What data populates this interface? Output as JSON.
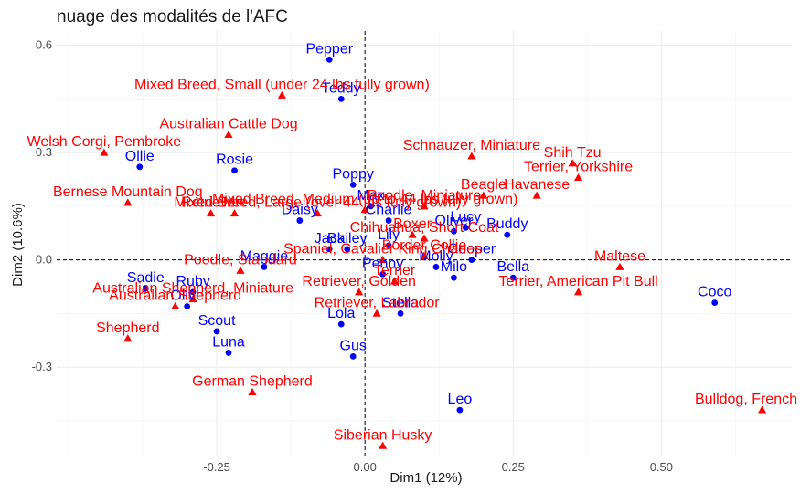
{
  "chart_data": {
    "type": "scatter",
    "title": "nuage des modalités de l'AFC",
    "xlabel": "Dim1 (12%)",
    "ylabel": "Dim2 (10.6%)",
    "xlim": [
      -0.52,
      0.72
    ],
    "ylim": [
      -0.55,
      0.64
    ],
    "xticks": [
      -0.25,
      0.0,
      0.25,
      0.5
    ],
    "xtick_labels": [
      "-0.25",
      "0.00",
      "0.25",
      "0.50"
    ],
    "yticks": [
      -0.3,
      0.0,
      0.3,
      0.6
    ],
    "ytick_labels": [
      "-0.3",
      "0.0",
      "0.3",
      "0.6"
    ],
    "grid": true,
    "reference_lines": {
      "x": 0,
      "y": 0,
      "style": "dashed"
    },
    "colors": {
      "names": "#0000ff",
      "breeds": "#ff0000"
    },
    "series": [
      {
        "marker": "circle",
        "color": "#0000ff",
        "points": [
          {
            "label": "Pepper",
            "x": -0.06,
            "y": 0.56
          },
          {
            "label": "Teddy",
            "x": -0.04,
            "y": 0.45
          },
          {
            "label": "Poppy",
            "x": -0.02,
            "y": 0.21
          },
          {
            "label": "Ollie",
            "x": -0.38,
            "y": 0.26
          },
          {
            "label": "Rosie",
            "x": -0.22,
            "y": 0.25
          },
          {
            "label": "Daisy",
            "x": -0.11,
            "y": 0.11
          },
          {
            "label": "Max",
            "x": 0.01,
            "y": 0.15
          },
          {
            "label": "Charlie",
            "x": 0.04,
            "y": 0.11
          },
          {
            "label": "Lucy",
            "x": 0.17,
            "y": 0.09
          },
          {
            "label": "Oliver",
            "x": 0.15,
            "y": 0.08
          },
          {
            "label": "Buddy",
            "x": 0.24,
            "y": 0.07
          },
          {
            "label": "Lily",
            "x": 0.04,
            "y": 0.04
          },
          {
            "label": "Bailey",
            "x": -0.03,
            "y": 0.03
          },
          {
            "label": "Cooper",
            "x": 0.18,
            "y": 0.0
          },
          {
            "label": "Molly",
            "x": 0.12,
            "y": -0.02
          },
          {
            "label": "Maggie",
            "x": -0.17,
            "y": -0.02
          },
          {
            "label": "Jack",
            "x": -0.06,
            "y": 0.03
          },
          {
            "label": "Sadie",
            "x": -0.37,
            "y": -0.08
          },
          {
            "label": "Ruby",
            "x": -0.29,
            "y": -0.09
          },
          {
            "label": "Olive",
            "x": -0.3,
            "y": -0.13
          },
          {
            "label": "Scout",
            "x": -0.25,
            "y": -0.2
          },
          {
            "label": "Luna",
            "x": -0.23,
            "y": -0.26
          },
          {
            "label": "Gus",
            "x": -0.02,
            "y": -0.27
          },
          {
            "label": "Lola",
            "x": -0.04,
            "y": -0.18
          },
          {
            "label": "Penny",
            "x": 0.03,
            "y": -0.04
          },
          {
            "label": "Stella",
            "x": 0.06,
            "y": -0.15
          },
          {
            "label": "Milo",
            "x": 0.15,
            "y": -0.05
          },
          {
            "label": "Bella",
            "x": 0.25,
            "y": -0.05
          },
          {
            "label": "Coco",
            "x": 0.59,
            "y": -0.12
          },
          {
            "label": "Leo",
            "x": 0.16,
            "y": -0.42
          }
        ]
      },
      {
        "marker": "triangle",
        "color": "#ff0000",
        "points": [
          {
            "label": "Mixed Breed, Small (under 24 lbs fully grown)",
            "x": -0.14,
            "y": 0.46
          },
          {
            "label": "Australian Cattle Dog",
            "x": -0.23,
            "y": 0.35
          },
          {
            "label": "Welsh Corgi, Pembroke",
            "x": -0.44,
            "y": 0.3
          },
          {
            "label": "Mixed Breed, Medium (up to 44 lbs fully grown)",
            "x": 0.0,
            "y": 0.14
          },
          {
            "label": "Bernese Mountain Dog",
            "x": -0.4,
            "y": 0.16
          },
          {
            "label": "Retriever",
            "x": -0.26,
            "y": 0.13
          },
          {
            "label": "Mix",
            "x": -0.22,
            "y": 0.13
          },
          {
            "label": "Schnauzer, Miniature",
            "x": 0.18,
            "y": 0.29
          },
          {
            "label": "Shih Tzu",
            "x": 0.35,
            "y": 0.27
          },
          {
            "label": "Beagle",
            "x": 0.2,
            "y": 0.18
          },
          {
            "label": "Terrier, Yorkshire",
            "x": 0.36,
            "y": 0.23
          },
          {
            "label": "Havanese",
            "x": 0.29,
            "y": 0.18
          },
          {
            "label": "Poodle, Miniature",
            "x": 0.1,
            "y": 0.15
          },
          {
            "label": "Boxer",
            "x": 0.08,
            "y": 0.07
          },
          {
            "label": "Chihuahua, Short Coat",
            "x": 0.1,
            "y": 0.06
          },
          {
            "label": "Mixed Breed, Large (over 44 lbs fully grown)",
            "x": -0.08,
            "y": 0.13
          },
          {
            "label": "Spaniel, Cavalier King Charles",
            "x": 0.03,
            "y": 0.0
          },
          {
            "label": "Border Collie",
            "x": 0.1,
            "y": 0.01
          },
          {
            "label": "Maltese",
            "x": 0.43,
            "y": -0.02
          },
          {
            "label": "Poodle, Standard",
            "x": -0.21,
            "y": -0.03
          },
          {
            "label": "Retriever, Golden",
            "x": -0.01,
            "y": -0.09
          },
          {
            "label": "Terrier",
            "x": 0.05,
            "y": -0.06
          },
          {
            "label": "Terrier, American Pit Bull",
            "x": 0.36,
            "y": -0.09
          },
          {
            "label": "Australian Shepherd, Miniature",
            "x": -0.29,
            "y": -0.11
          },
          {
            "label": "Australian Shepherd",
            "x": -0.32,
            "y": -0.13
          },
          {
            "label": "Retriever, Labrador",
            "x": 0.02,
            "y": -0.15
          },
          {
            "label": "Shepherd",
            "x": -0.4,
            "y": -0.22
          },
          {
            "label": "German Shepherd",
            "x": -0.19,
            "y": -0.37
          },
          {
            "label": "Siberian Husky",
            "x": 0.03,
            "y": -0.52
          },
          {
            "label": "Bulldog, French",
            "x": 0.67,
            "y": -0.42
          }
        ]
      }
    ]
  }
}
